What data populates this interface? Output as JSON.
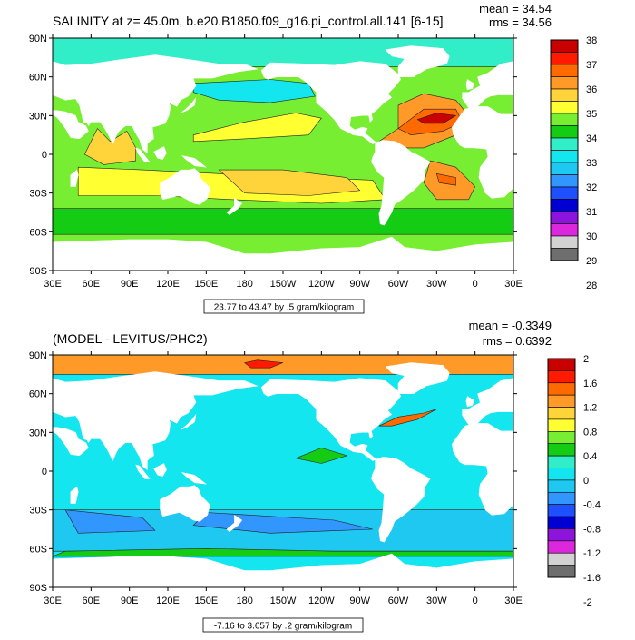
{
  "panels": [
    {
      "title": "SALINITY at z=  45.0m, b.e20.B1850.f09_g16.pi_control.all.141 [6-15]",
      "mean": "mean = 34.54",
      "rms": "rms = 34.56",
      "footnote": "23.77 to 43.47 by .5 gram/kilogram",
      "colorbar": {
        "labels": [
          "38",
          "37",
          "36",
          "35",
          "34",
          "33",
          "32",
          "31",
          "30",
          "29",
          "28"
        ],
        "colors": [
          "#c80000",
          "#ff1a00",
          "#ff6a00",
          "#ff9a28",
          "#ffd43a",
          "#ffff32",
          "#78ee32",
          "#14cc14",
          "#32eec8",
          "#14e6f0",
          "#1ec8f0",
          "#3296ff",
          "#1e50ff",
          "#0000d2",
          "#8c14dc",
          "#dc28dc",
          "#d2d2d2",
          "#6e6e6e"
        ]
      }
    },
    {
      "title": "(MODEL - LEVITUS/PHC2)",
      "mean": "mean = -0.3349",
      "rms": "rms = 0.6392",
      "footnote": "-7.16 to 3.657 by .2 gram/kilogram",
      "colorbar": {
        "labels": [
          "2",
          "1.6",
          "1.2",
          "0.8",
          "0.4",
          "0",
          "-0.4",
          "-0.8",
          "-1.2",
          "-1.6",
          "-2"
        ],
        "colors": [
          "#c80000",
          "#ff1a00",
          "#ff6a00",
          "#ff9a28",
          "#ffd43a",
          "#ffff32",
          "#78ee32",
          "#14cc14",
          "#32eec8",
          "#14e6f0",
          "#1ec8f0",
          "#3296ff",
          "#1e50ff",
          "#0000d2",
          "#8c14dc",
          "#dc28dc",
          "#d2d2d2",
          "#6e6e6e"
        ]
      }
    }
  ],
  "axes": {
    "lat_labels": [
      "90N",
      "60N",
      "30N",
      "0",
      "30S",
      "60S",
      "90S"
    ],
    "lon_labels": [
      "30E",
      "60E",
      "90E",
      "120E",
      "150E",
      "180",
      "150W",
      "120W",
      "90W",
      "60W",
      "30W",
      "0",
      "30E"
    ]
  },
  "ocean_fill": {
    "salinity": {
      "arctic_band": "#32eec8",
      "background": "#78ee32",
      "south_band": "#14cc14",
      "tropical_belt": "#ffff32",
      "atlantic_north": "#ff9a28",
      "atlantic_core": "#ff6a00",
      "atlantic_max": "#c80000",
      "south_atlantic": "#ff9a28",
      "south_pacific": "#ffd43a",
      "north_pacific_cool": "#14e6f0",
      "indian_north": "#ffd43a"
    },
    "difference": {
      "arctic_band": "#ff9a28",
      "arctic_max": "#ff1a00",
      "background": "#14e6f0",
      "south_band": "#1ec8f0",
      "negative_patches": "#3296ff",
      "positive_patches": "#14cc14",
      "gulf_stream": "#ff6a00"
    }
  }
}
